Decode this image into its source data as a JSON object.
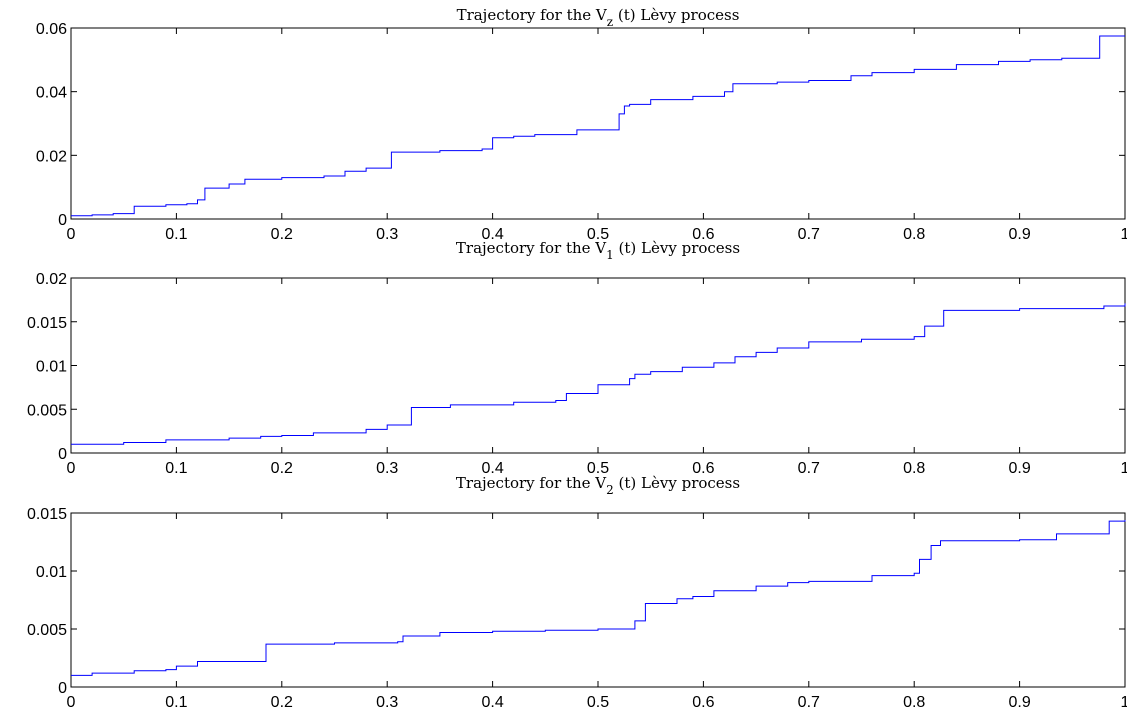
{
  "chart_data": [
    {
      "type": "line",
      "title": {
        "prefix": "Trajectory for the V",
        "subscript": "z",
        "suffix": " (t) Lèvy process"
      },
      "xlabel": "",
      "ylabel": "",
      "xlim": [
        0,
        1
      ],
      "ylim": [
        0,
        0.06
      ],
      "xticks": [
        0,
        0.1,
        0.2,
        0.3,
        0.4,
        0.5,
        0.6,
        0.7,
        0.8,
        0.9,
        1
      ],
      "xtick_labels": [
        "0",
        "0.1",
        "0.2",
        "0.3",
        "0.4",
        "0.5",
        "0.6",
        "0.7",
        "0.8",
        "0.9",
        "1"
      ],
      "yticks": [
        0,
        0.02,
        0.04,
        0.06
      ],
      "ytick_labels": [
        "0",
        "0.02",
        "0.04",
        "0.06"
      ],
      "grid": false,
      "color": "#0000ff",
      "step": true,
      "x": [
        0,
        0.02,
        0.04,
        0.06,
        0.09,
        0.11,
        0.12,
        0.127,
        0.15,
        0.165,
        0.2,
        0.24,
        0.26,
        0.28,
        0.304,
        0.35,
        0.39,
        0.4,
        0.42,
        0.44,
        0.48,
        0.52,
        0.525,
        0.53,
        0.55,
        0.59,
        0.62,
        0.628,
        0.67,
        0.7,
        0.74,
        0.76,
        0.8,
        0.82,
        0.84,
        0.88,
        0.91,
        0.94,
        0.976,
        1
      ],
      "y": [
        0.001,
        0.0013,
        0.0017,
        0.004,
        0.0045,
        0.0048,
        0.006,
        0.0097,
        0.011,
        0.0125,
        0.013,
        0.0135,
        0.015,
        0.016,
        0.021,
        0.0215,
        0.022,
        0.0255,
        0.026,
        0.0265,
        0.028,
        0.033,
        0.0355,
        0.036,
        0.0375,
        0.0385,
        0.04,
        0.0425,
        0.043,
        0.0435,
        0.045,
        0.046,
        0.047,
        0.047,
        0.0485,
        0.0495,
        0.05,
        0.0505,
        0.0575,
        0.0575
      ]
    },
    {
      "type": "line",
      "title": {
        "prefix": "Trajectory for the V",
        "subscript": "1",
        "suffix": " (t) Lèvy process"
      },
      "xlabel": "",
      "ylabel": "",
      "xlim": [
        0,
        1
      ],
      "ylim": [
        0,
        0.02
      ],
      "xticks": [
        0,
        0.1,
        0.2,
        0.3,
        0.4,
        0.5,
        0.6,
        0.7,
        0.8,
        0.9,
        1
      ],
      "xtick_labels": [
        "0",
        "0.1",
        "0.2",
        "0.3",
        "0.4",
        "0.5",
        "0.6",
        "0.7",
        "0.8",
        "0.9",
        "1"
      ],
      "yticks": [
        0,
        0.005,
        0.01,
        0.015,
        0.02
      ],
      "ytick_labels": [
        "0",
        "0.005",
        "0.01",
        "0.015",
        "0.02"
      ],
      "grid": false,
      "color": "#0000ff",
      "step": true,
      "x": [
        0,
        0.05,
        0.09,
        0.15,
        0.18,
        0.2,
        0.23,
        0.28,
        0.3,
        0.323,
        0.36,
        0.42,
        0.46,
        0.47,
        0.5,
        0.53,
        0.535,
        0.55,
        0.58,
        0.61,
        0.63,
        0.65,
        0.67,
        0.7,
        0.75,
        0.8,
        0.81,
        0.828,
        0.9,
        0.98,
        1
      ],
      "y": [
        0.001,
        0.0012,
        0.0015,
        0.0017,
        0.0019,
        0.002,
        0.0023,
        0.0027,
        0.0032,
        0.0052,
        0.0055,
        0.0058,
        0.006,
        0.0068,
        0.0078,
        0.0085,
        0.009,
        0.0093,
        0.0098,
        0.0103,
        0.011,
        0.0115,
        0.012,
        0.0127,
        0.013,
        0.0133,
        0.0145,
        0.0163,
        0.0165,
        0.0168,
        0.0171
      ]
    },
    {
      "type": "line",
      "title": {
        "prefix": "Trajectory for the V",
        "subscript": "2",
        "suffix": " (t) Lèvy process"
      },
      "xlabel": "",
      "ylabel": "",
      "xlim": [
        0,
        1
      ],
      "ylim": [
        0,
        0.015
      ],
      "xticks": [
        0,
        0.1,
        0.2,
        0.3,
        0.4,
        0.5,
        0.6,
        0.7,
        0.8,
        0.9,
        1
      ],
      "xtick_labels": [
        "0",
        "0.1",
        "0.2",
        "0.3",
        "0.4",
        "0.5",
        "0.6",
        "0.7",
        "0.8",
        "0.9",
        "1"
      ],
      "yticks": [
        0,
        0.005,
        0.01,
        0.015
      ],
      "ytick_labels": [
        "0",
        "0.005",
        "0.01",
        "0.015"
      ],
      "grid": false,
      "color": "#0000ff",
      "step": true,
      "x": [
        0,
        0.02,
        0.06,
        0.09,
        0.1,
        0.12,
        0.185,
        0.25,
        0.31,
        0.315,
        0.35,
        0.4,
        0.45,
        0.5,
        0.535,
        0.545,
        0.575,
        0.59,
        0.61,
        0.65,
        0.68,
        0.7,
        0.76,
        0.8,
        0.805,
        0.816,
        0.825,
        0.9,
        0.935,
        0.985,
        1
      ],
      "y": [
        0.001,
        0.0012,
        0.0014,
        0.0015,
        0.0018,
        0.0022,
        0.0037,
        0.0038,
        0.0039,
        0.0044,
        0.0047,
        0.0048,
        0.0049,
        0.005,
        0.0057,
        0.0072,
        0.0076,
        0.0078,
        0.0083,
        0.0087,
        0.009,
        0.0091,
        0.0096,
        0.0098,
        0.011,
        0.0122,
        0.0126,
        0.0127,
        0.0132,
        0.0143,
        0.0144
      ]
    }
  ]
}
